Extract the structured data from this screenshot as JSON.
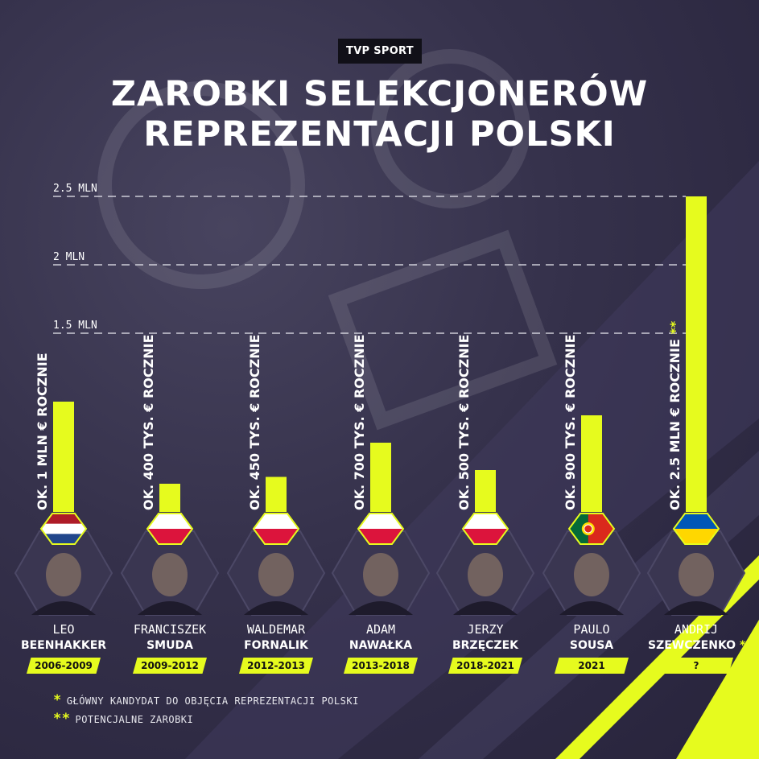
{
  "brand": "TVP SPORT",
  "title": {
    "line1": "ZAROBKI SELEKCJONERÓW",
    "line2": "REPREZENTACJI POLSKI"
  },
  "colors": {
    "background": "#2b2741",
    "accent": "#e6fb1e",
    "text": "#ffffff"
  },
  "chart_data": {
    "type": "bar",
    "unit": "EUR per year",
    "y_ticks": [
      {
        "value": 1500000,
        "label": "1.5 MLN"
      },
      {
        "value": 2000000,
        "label": "2 MLN"
      },
      {
        "value": 2500000,
        "label": "2.5 MLN"
      }
    ],
    "grid": "dashed horizontal lines at tick values",
    "categories": [
      "LEO BEENHAKKER",
      "FRANCISZEK SMUDA",
      "WALDEMAR FORNALIK",
      "ADAM NAWAŁKA",
      "JERZY BRZĘCZEK",
      "PAULO SOUSA",
      "ANDRIJ SZEWCZENKO"
    ],
    "values": [
      1000000,
      400000,
      450000,
      700000,
      500000,
      900000,
      2500000
    ],
    "bars": [
      {
        "value": 1000000,
        "label": "OK. 1 MLN € ROCZNIE",
        "flag": "netherlands",
        "first": "LEO",
        "last": "BEENHAKKER",
        "period": "2006-2009"
      },
      {
        "value": 400000,
        "label": "OK. 400 TYS. € ROCZNIE",
        "flag": "poland",
        "first": "FRANCISZEK",
        "last": "SMUDA",
        "period": "2009-2012"
      },
      {
        "value": 450000,
        "label": "OK. 450 TYS. € ROCZNIE",
        "flag": "poland",
        "first": "WALDEMAR",
        "last": "FORNALIK",
        "period": "2012-2013"
      },
      {
        "value": 700000,
        "label": "OK. 700 TYS. € ROCZNIE",
        "flag": "poland",
        "first": "ADAM",
        "last": "NAWAŁKA",
        "period": "2013-2018"
      },
      {
        "value": 500000,
        "label": "OK. 500 TYS. € ROCZNIE",
        "flag": "poland",
        "first": "JERZY",
        "last": "BRZĘCZEK",
        "period": "2018-2021"
      },
      {
        "value": 900000,
        "label": "OK. 900 TYS. € ROCZNIE",
        "flag": "portugal",
        "first": "PAULO",
        "last": "SOUSA",
        "period": "2021"
      },
      {
        "value": 2500000,
        "label": "OK. 2.5 MLN € ROCZNIE",
        "label_mark": "**",
        "flag": "ukraine",
        "first": "ANDRIJ",
        "last": "SZEWCZENKO",
        "last_mark": "*",
        "period": "?"
      }
    ]
  },
  "footnotes": [
    {
      "mark": "*",
      "text": "GŁÓWNY KANDYDAT DO OBJĘCIA REPREZENTACJI POLSKI"
    },
    {
      "mark": "**",
      "text": "POTENCJALNE ZAROBKI"
    }
  ]
}
